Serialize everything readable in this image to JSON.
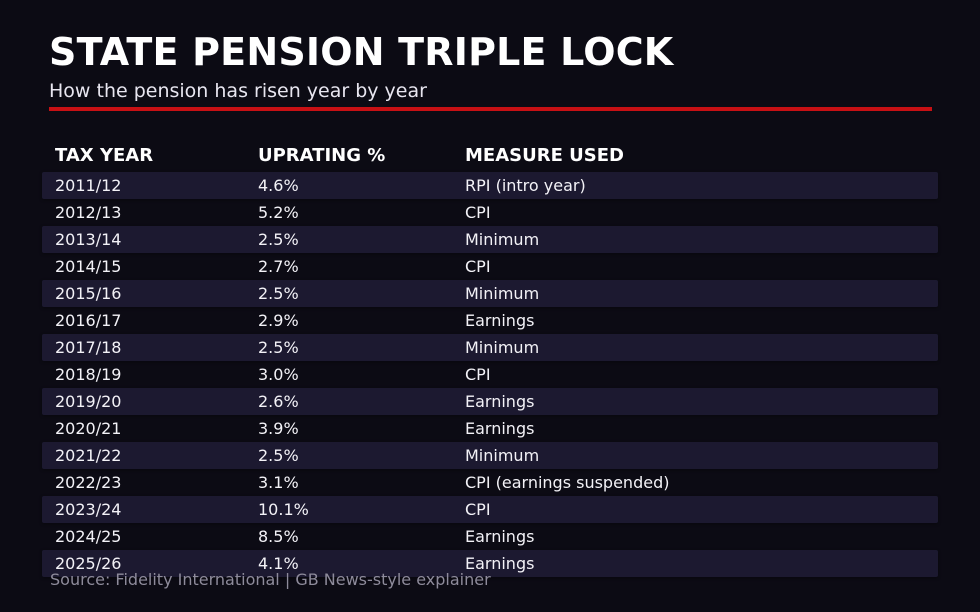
{
  "title": "STATE PENSION TRIPLE LOCK",
  "subtitle": "How the pension has risen year by year",
  "footer": "Source: Fidelity International | GB News-style explainer",
  "colors": {
    "background": "#0c0b14",
    "accent_red": "#c81014",
    "row_stripe": "#1c1930",
    "text": "#f3f2f7",
    "muted_text": "#8e8b9b"
  },
  "table": {
    "columns": [
      "TAX YEAR",
      "UPRATING %",
      "MEASURE USED"
    ],
    "rows": [
      [
        "2011/12",
        "4.6%",
        "RPI (intro year)"
      ],
      [
        "2012/13",
        "5.2%",
        "CPI"
      ],
      [
        "2013/14",
        "2.5%",
        "Minimum"
      ],
      [
        "2014/15",
        "2.7%",
        "CPI"
      ],
      [
        "2015/16",
        "2.5%",
        "Minimum"
      ],
      [
        "2016/17",
        "2.9%",
        "Earnings"
      ],
      [
        "2017/18",
        "2.5%",
        "Minimum"
      ],
      [
        "2018/19",
        "3.0%",
        "CPI"
      ],
      [
        "2019/20",
        "2.6%",
        "Earnings"
      ],
      [
        "2020/21",
        "3.9%",
        "Earnings"
      ],
      [
        "2021/22",
        "2.5%",
        "Minimum"
      ],
      [
        "2022/23",
        "3.1%",
        "CPI (earnings suspended)"
      ],
      [
        "2023/24",
        "10.1%",
        "CPI"
      ],
      [
        "2024/25",
        "8.5%",
        "Earnings"
      ],
      [
        "2025/26",
        "4.1%",
        "Earnings"
      ]
    ]
  },
  "chart_data": {
    "type": "table",
    "title": "STATE PENSION TRIPLE LOCK",
    "subtitle": "How the pension has risen year by year",
    "columns": [
      "TAX YEAR",
      "UPRATING %",
      "MEASURE USED"
    ],
    "rows": [
      [
        "2011/12",
        4.6,
        "RPI (intro year)"
      ],
      [
        "2012/13",
        5.2,
        "CPI"
      ],
      [
        "2013/14",
        2.5,
        "Minimum"
      ],
      [
        "2014/15",
        2.7,
        "CPI"
      ],
      [
        "2015/16",
        2.5,
        "Minimum"
      ],
      [
        "2016/17",
        2.9,
        "Earnings"
      ],
      [
        "2017/18",
        2.5,
        "Minimum"
      ],
      [
        "2018/19",
        3.0,
        "CPI"
      ],
      [
        "2019/20",
        2.6,
        "Earnings"
      ],
      [
        "2020/21",
        3.9,
        "Earnings"
      ],
      [
        "2021/22",
        2.5,
        "Minimum"
      ],
      [
        "2022/23",
        3.1,
        "CPI (earnings suspended)"
      ],
      [
        "2023/24",
        10.1,
        "CPI"
      ],
      [
        "2024/25",
        8.5,
        "Earnings"
      ],
      [
        "2025/26",
        4.1,
        "Earnings"
      ]
    ],
    "value_unit": "%",
    "source": "Source: Fidelity International | GB News-style explainer"
  }
}
